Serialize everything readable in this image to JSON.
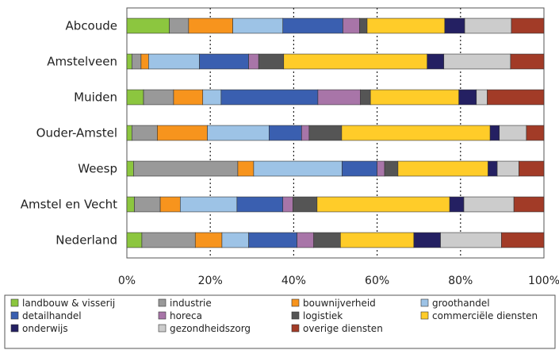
{
  "chart_data": {
    "type": "bar",
    "orientation": "horizontal",
    "stacked": true,
    "percent": true,
    "categories": [
      "Abcoude",
      "Amstelveen",
      "Muiden",
      "Ouder-Amstel",
      "Weesp",
      "Amstel en Vecht",
      "Nederland"
    ],
    "xlim": [
      0,
      100
    ],
    "xticks": [
      "0%",
      "20%",
      "40%",
      "60%",
      "80%",
      "100%"
    ],
    "grid": "vertical dotted at 20% steps",
    "legend_position": "bottom",
    "series": [
      {
        "name": "landbouw & visserij",
        "color": "#8cc63f",
        "values": [
          10.2,
          1.2,
          4.0,
          1.2,
          1.6,
          1.8,
          3.6
        ]
      },
      {
        "name": "industrie",
        "color": "#999999",
        "values": [
          4.6,
          2.2,
          7.2,
          6.1,
          25.0,
          6.2,
          12.8
        ]
      },
      {
        "name": "bouwnijverheid",
        "color": "#f7941d",
        "values": [
          10.6,
          1.8,
          7.0,
          12.0,
          3.8,
          4.8,
          6.4
        ]
      },
      {
        "name": "groothandel",
        "color": "#9dc3e6",
        "values": [
          12.0,
          12.2,
          4.4,
          14.8,
          21.2,
          13.6,
          6.4
        ]
      },
      {
        "name": "detailhandel",
        "color": "#3a5fb0",
        "values": [
          14.4,
          11.8,
          23.2,
          7.8,
          8.4,
          11.0,
          11.6
        ]
      },
      {
        "name": "horeca",
        "color": "#a875a8",
        "values": [
          4.0,
          2.4,
          10.2,
          1.8,
          1.8,
          2.4,
          4.0
        ]
      },
      {
        "name": "logistiek",
        "color": "#555555",
        "values": [
          1.8,
          6.0,
          2.4,
          7.8,
          3.2,
          5.8,
          6.4
        ]
      },
      {
        "name": "commerciële diensten",
        "color": "#ffcc29",
        "values": [
          18.6,
          34.4,
          21.2,
          35.6,
          21.6,
          31.8,
          17.6
        ]
      },
      {
        "name": "onderwijs",
        "color": "#242062",
        "values": [
          4.8,
          4.0,
          4.2,
          2.2,
          2.2,
          3.4,
          6.4
        ]
      },
      {
        "name": "gezondheidszorg",
        "color": "#cccccc",
        "values": [
          11.2,
          16.0,
          2.6,
          6.5,
          5.2,
          12.0,
          14.6
        ]
      },
      {
        "name": "overige diensten",
        "color": "#a23b27",
        "values": [
          7.8,
          8.0,
          13.6,
          4.2,
          6.0,
          7.2,
          10.2
        ]
      }
    ]
  }
}
